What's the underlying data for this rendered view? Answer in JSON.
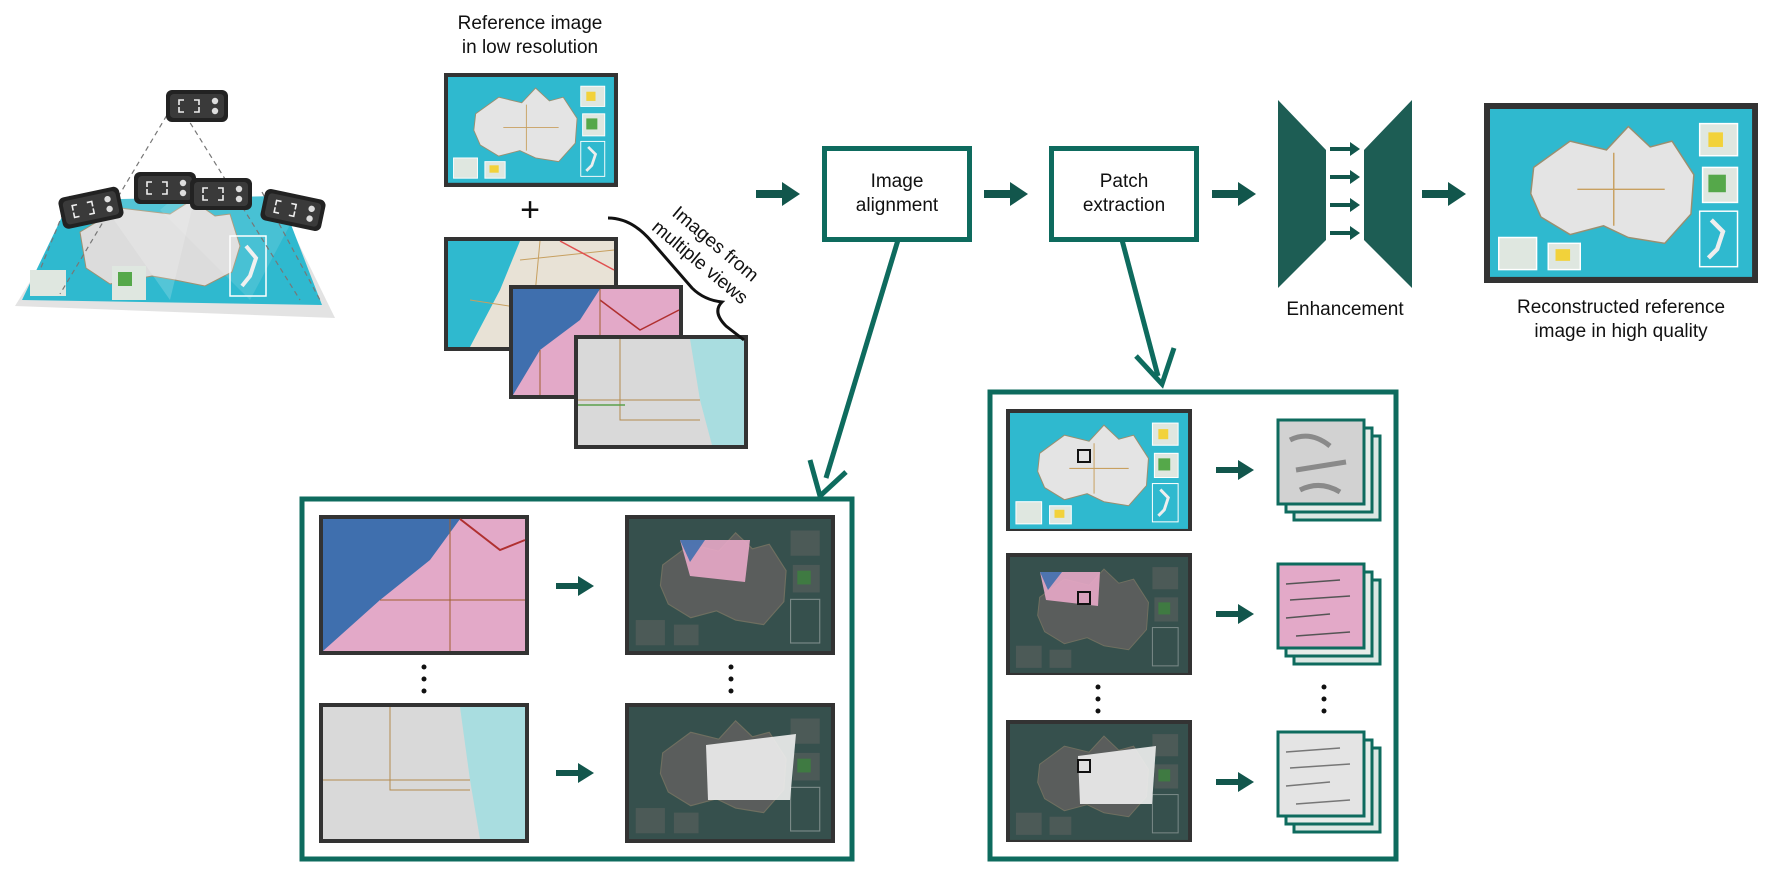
{
  "labels": {
    "reference_low_res": "Reference image\nin low resolution",
    "plus": "+",
    "multiple_views": "Images from\nmultiple views",
    "image_alignment": "Image\nalignment",
    "patch_extraction": "Patch\nextraction",
    "enhancement": "Enhancement",
    "reconstructed": "Reconstructed reference\nimage in high quality"
  },
  "colors": {
    "accent": "#0e6b5e",
    "arrow": "#12564c",
    "network": "#1d5d54",
    "map_water": "#2fb9cf",
    "map_land": "#e6e6e6",
    "map_pink": "#e8a8c8",
    "map_blue": "#3f6fae",
    "dark_overlay": "#3a4a48",
    "frame": "#333333"
  },
  "icons": [
    "camera-icon",
    "map-thumbnail",
    "right-arrow-icon",
    "encoder-decoder-icon",
    "patch-stack-icon",
    "vertical-ellipsis-icon",
    "brace-icon"
  ]
}
